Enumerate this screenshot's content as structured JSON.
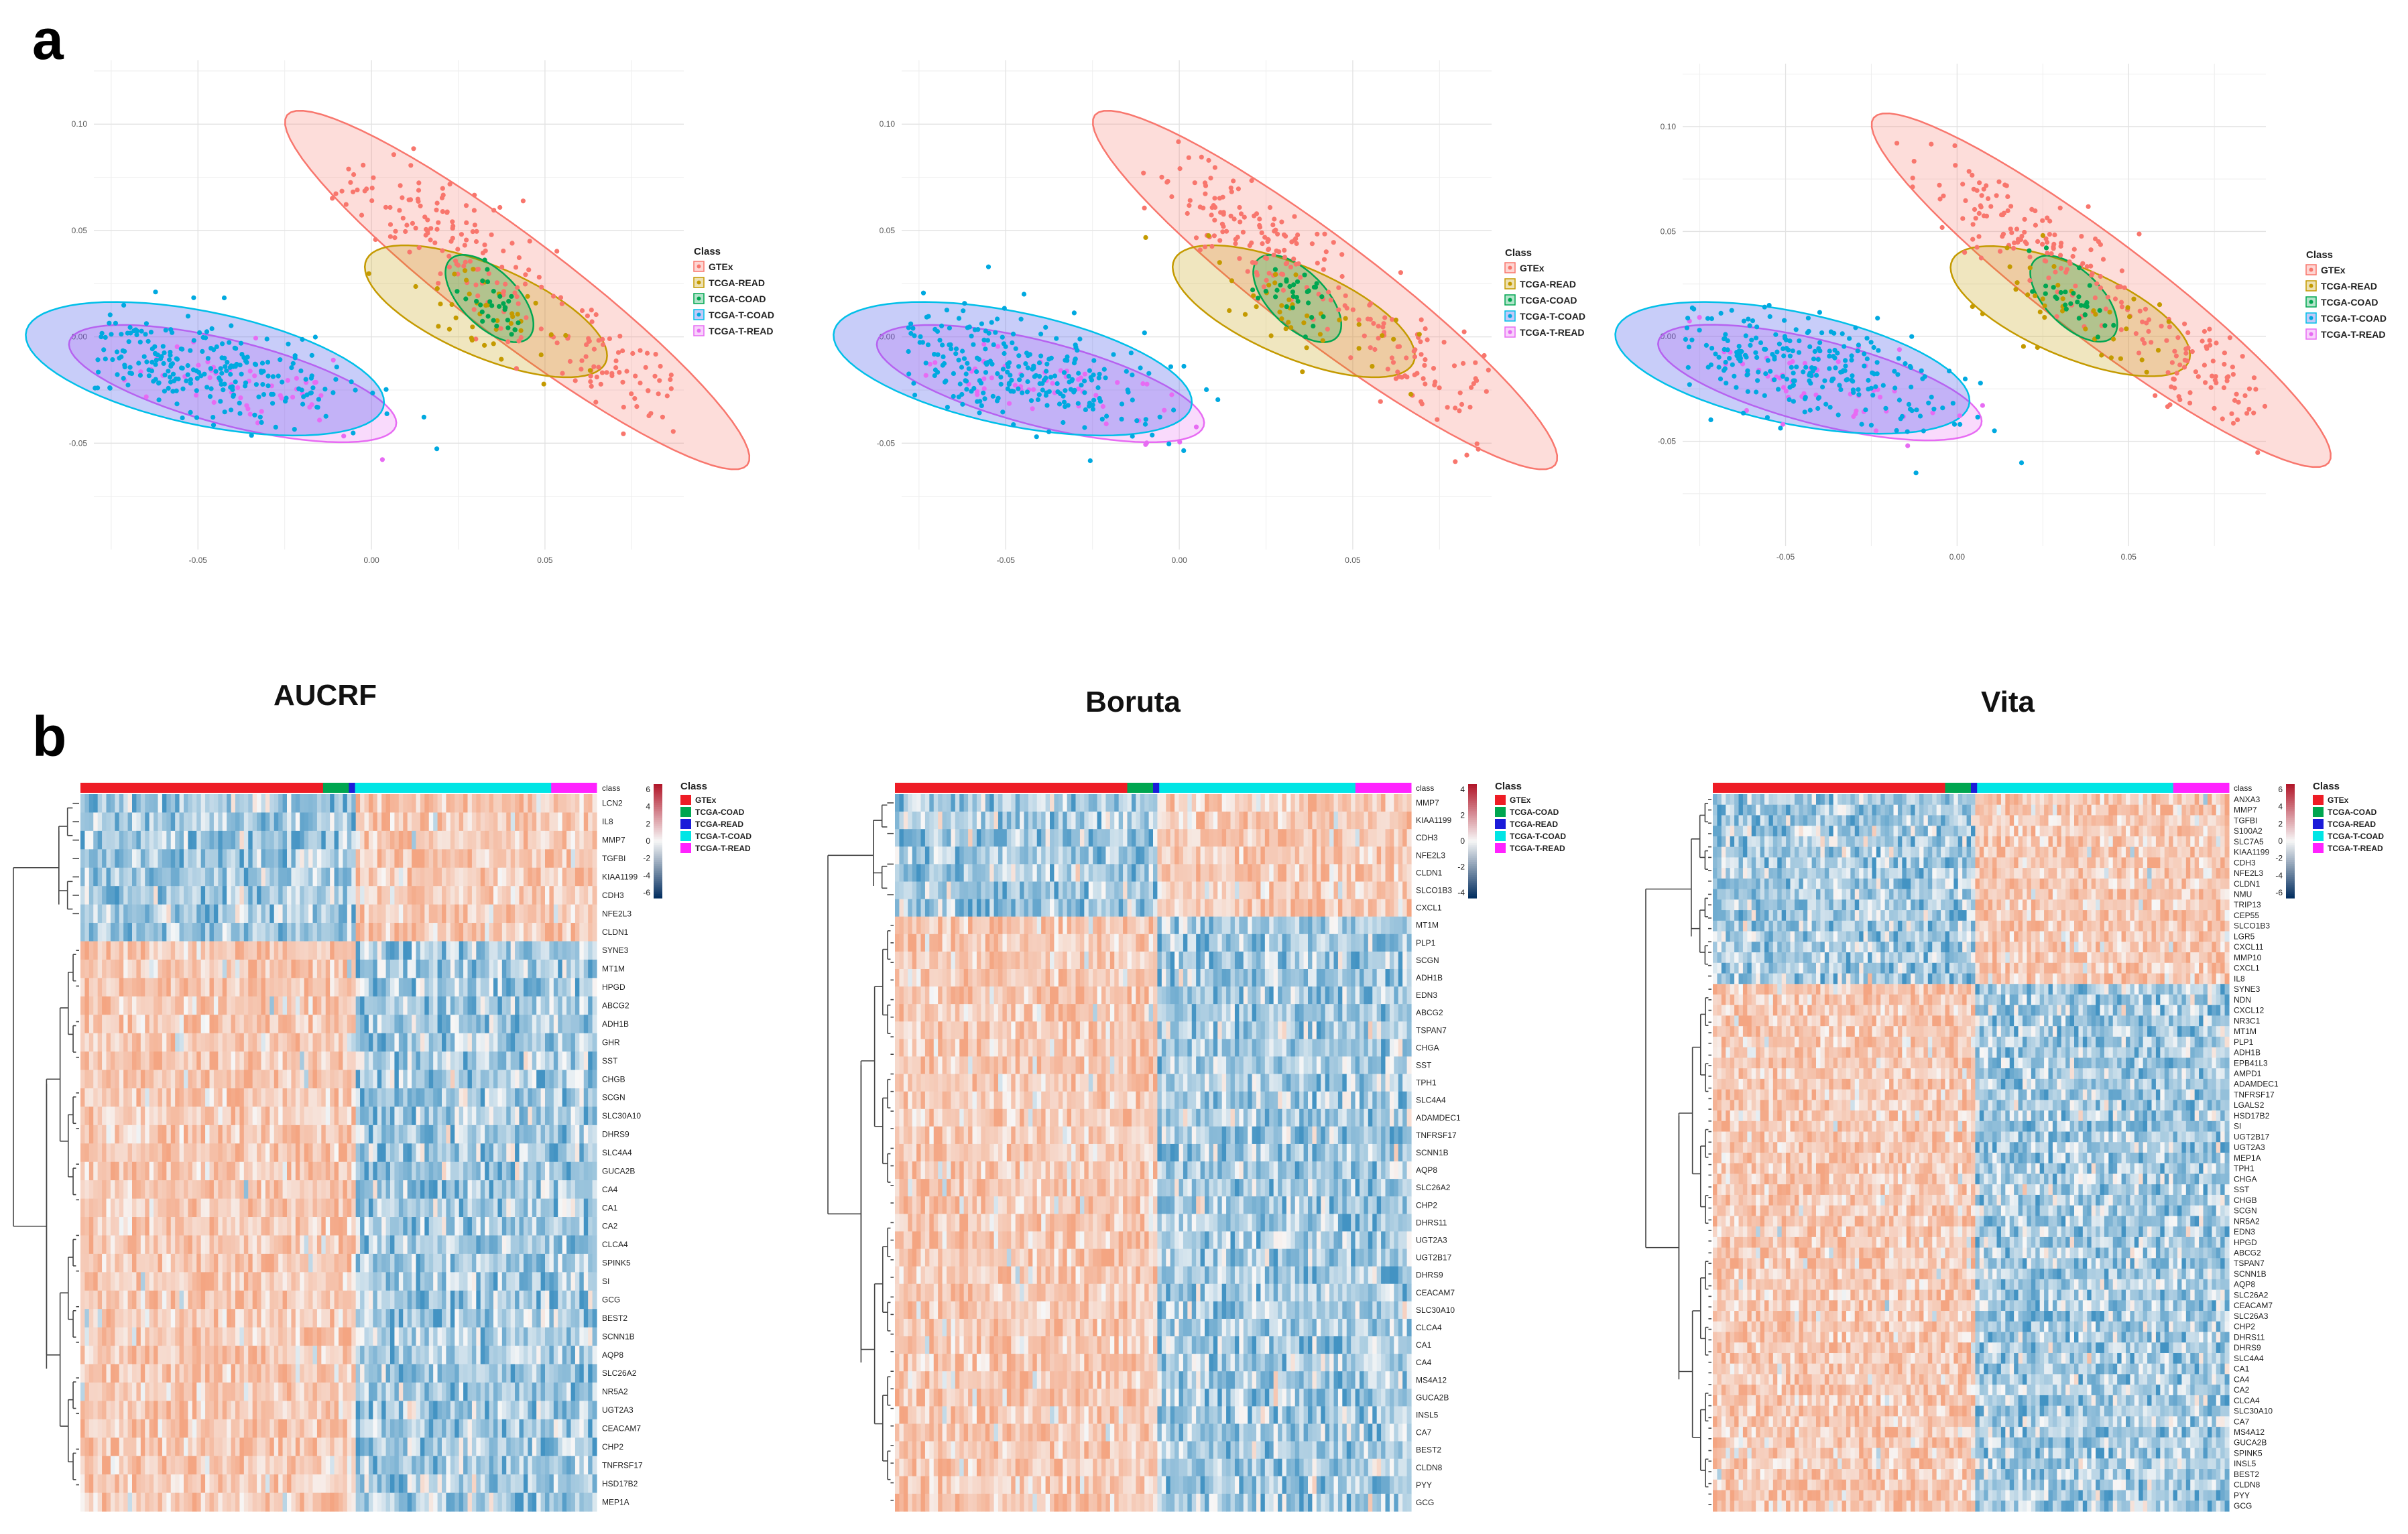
{
  "figure": {
    "panel_a_label": "a",
    "panel_b_label": "b",
    "methods": [
      "AUCRF",
      "Boruta",
      "Vita"
    ]
  },
  "colors": {
    "GTEx": "#F8766D",
    "TCGA-READ": "#C49A00",
    "TCGA-COAD": "#00A650",
    "TCGA-T-COAD": "#00A9E0",
    "TCGA-T-READ": "#E76BF3",
    "bar_GTEx": "#EE1C25",
    "bar_TCGA-COAD": "#00A650",
    "bar_TCGA-READ": "#1B1BD9",
    "bar_TCGA-T-COAD": "#00E5E5",
    "bar_TCGA-T-READ": "#FF22FF",
    "heat_high": "#F4A582",
    "heat_low": "#6BAED6",
    "heat_mid": "#F7F7F7"
  },
  "chart_data": [
    {
      "type": "scatter",
      "method": "AUCRF",
      "xlabel": "",
      "ylabel": "",
      "x_ticks": [
        "-0.05",
        "0.00",
        "0.05"
      ],
      "y_ticks": [
        "0.10",
        "0.05",
        "0.00",
        "-0.05"
      ],
      "xlim": [
        -0.08,
        0.09
      ],
      "ylim": [
        -0.1,
        0.13
      ],
      "legend_title": "Class",
      "legend": [
        "GTEx",
        "TCGA-READ",
        "TCGA-COAD",
        "TCGA-T-COAD",
        "TCGA-T-READ"
      ],
      "series": [
        {
          "name": "GTEx",
          "center": [
            0.042,
            0.022
          ],
          "spread_major": 0.062,
          "spread_minor": 0.011,
          "angle_deg": -52,
          "n": 230
        },
        {
          "name": "TCGA-READ",
          "center": [
            0.033,
            0.012
          ],
          "spread_major": 0.025,
          "spread_minor": 0.011,
          "angle_deg": -40,
          "n": 40
        },
        {
          "name": "TCGA-COAD",
          "center": [
            0.034,
            0.018
          ],
          "spread_major": 0.013,
          "spread_minor": 0.0055,
          "angle_deg": -65,
          "n": 30
        },
        {
          "name": "TCGA-T-COAD",
          "center": [
            -0.048,
            -0.015
          ],
          "spread_major": 0.032,
          "spread_minor": 0.015,
          "angle_deg": -22,
          "n": 270
        },
        {
          "name": "TCGA-T-READ",
          "center": [
            -0.04,
            -0.022
          ],
          "spread_major": 0.03,
          "spread_minor": 0.011,
          "angle_deg": -25,
          "n": 55
        }
      ]
    },
    {
      "type": "scatter",
      "method": "Boruta",
      "xlabel": "",
      "ylabel": "",
      "x_ticks": [
        "-0.05",
        "0.00",
        "0.05"
      ],
      "y_ticks": [
        "0.10",
        "0.05",
        "0.00",
        "-0.05"
      ],
      "xlim": [
        -0.08,
        0.09
      ],
      "ylim": [
        -0.1,
        0.13
      ],
      "legend_title": "Class",
      "legend": [
        "GTEx",
        "TCGA-READ",
        "TCGA-COAD",
        "TCGA-T-COAD",
        "TCGA-T-READ"
      ],
      "series": [
        {
          "name": "GTEx",
          "center": [
            0.042,
            0.022
          ],
          "spread_major": 0.062,
          "spread_minor": 0.011,
          "angle_deg": -52,
          "n": 230
        },
        {
          "name": "TCGA-READ",
          "center": [
            0.033,
            0.012
          ],
          "spread_major": 0.025,
          "spread_minor": 0.011,
          "angle_deg": -40,
          "n": 40
        },
        {
          "name": "TCGA-COAD",
          "center": [
            0.034,
            0.018
          ],
          "spread_major": 0.013,
          "spread_minor": 0.0055,
          "angle_deg": -65,
          "n": 30
        },
        {
          "name": "TCGA-T-COAD",
          "center": [
            -0.048,
            -0.015
          ],
          "spread_major": 0.032,
          "spread_minor": 0.015,
          "angle_deg": -22,
          "n": 270
        },
        {
          "name": "TCGA-T-READ",
          "center": [
            -0.04,
            -0.022
          ],
          "spread_major": 0.03,
          "spread_minor": 0.011,
          "angle_deg": -25,
          "n": 55
        }
      ]
    },
    {
      "type": "scatter",
      "method": "Vita",
      "xlabel": "",
      "ylabel": "",
      "x_ticks": [
        "-0.05",
        "0.00",
        "0.05"
      ],
      "y_ticks": [
        "0.10",
        "0.05",
        "0.00",
        "-0.05"
      ],
      "xlim": [
        -0.08,
        0.09
      ],
      "ylim": [
        -0.1,
        0.13
      ],
      "legend_title": "Class",
      "legend": [
        "GTEx",
        "TCGA-READ",
        "TCGA-COAD",
        "TCGA-T-COAD",
        "TCGA-T-READ"
      ],
      "series": [
        {
          "name": "GTEx",
          "center": [
            0.042,
            0.022
          ],
          "spread_major": 0.062,
          "spread_minor": 0.011,
          "angle_deg": -52,
          "n": 230
        },
        {
          "name": "TCGA-READ",
          "center": [
            0.033,
            0.012
          ],
          "spread_major": 0.025,
          "spread_minor": 0.011,
          "angle_deg": -40,
          "n": 40
        },
        {
          "name": "TCGA-COAD",
          "center": [
            0.034,
            0.018
          ],
          "spread_major": 0.013,
          "spread_minor": 0.0055,
          "angle_deg": -65,
          "n": 30
        },
        {
          "name": "TCGA-T-COAD",
          "center": [
            -0.048,
            -0.015
          ],
          "spread_major": 0.032,
          "spread_minor": 0.015,
          "angle_deg": -22,
          "n": 270
        },
        {
          "name": "TCGA-T-READ",
          "center": [
            -0.04,
            -0.022
          ],
          "spread_major": 0.03,
          "spread_minor": 0.011,
          "angle_deg": -25,
          "n": 55
        }
      ]
    },
    {
      "type": "heatmap",
      "method": "AUCRF",
      "annotation_label": "class",
      "legend_title": "Class",
      "legend": [
        "GTEx",
        "TCGA-COAD",
        "TCGA-READ",
        "TCGA-T-COAD",
        "TCGA-T-READ"
      ],
      "scale_ticks": [
        "6",
        "4",
        "2",
        "0",
        "-2",
        "-4",
        "-6"
      ],
      "class_fractions": [
        0.47,
        0.05,
        0.012,
        0.38,
        0.088
      ],
      "up_count": 8,
      "genes": [
        "LCN2",
        "IL8",
        "MMP7",
        "TGFBI",
        "KIAA1199",
        "CDH3",
        "NFE2L3",
        "CLDN1",
        "SYNE3",
        "MT1M",
        "HPGD",
        "ABCG2",
        "ADH1B",
        "GHR",
        "SST",
        "CHGB",
        "SCGN",
        "SLC30A10",
        "DHRS9",
        "SLC4A4",
        "GUCA2B",
        "CA4",
        "CA1",
        "CA2",
        "CLCA4",
        "SPINK5",
        "SI",
        "GCG",
        "BEST2",
        "SCNN1B",
        "AQP8",
        "SLC26A2",
        "NR5A2",
        "UGT2A3",
        "CEACAM7",
        "CHP2",
        "TNFRSF17",
        "HSD17B2",
        "MEP1A"
      ]
    },
    {
      "type": "heatmap",
      "method": "Boruta",
      "annotation_label": "class",
      "legend_title": "Class",
      "legend": [
        "GTEx",
        "TCGA-COAD",
        "TCGA-READ",
        "TCGA-T-COAD",
        "TCGA-T-READ"
      ],
      "scale_ticks": [
        "4",
        "2",
        "0",
        "-2",
        "-4"
      ],
      "class_fractions": [
        0.45,
        0.05,
        0.012,
        0.38,
        0.108
      ],
      "up_count": 7,
      "genes": [
        "MMP7",
        "KIAA1199",
        "CDH3",
        "NFE2L3",
        "CLDN1",
        "SLCO1B3",
        "CXCL1",
        "MT1M",
        "PLP1",
        "SCGN",
        "ADH1B",
        "EDN3",
        "ABCG2",
        "TSPAN7",
        "CHGA",
        "SST",
        "TPH1",
        "SLC4A4",
        "ADAMDEC1",
        "TNFRSF17",
        "SCNN1B",
        "AQP8",
        "SLC26A2",
        "CHP2",
        "DHRS11",
        "UGT2A3",
        "UGT2B17",
        "DHRS9",
        "CEACAM7",
        "SLC30A10",
        "CLCA4",
        "CA1",
        "CA4",
        "MS4A12",
        "GUCA2B",
        "INSL5",
        "CA7",
        "BEST2",
        "CLDN8",
        "PYY",
        "GCG"
      ]
    },
    {
      "type": "heatmap",
      "method": "Vita",
      "annotation_label": "class",
      "legend_title": "Class",
      "legend": [
        "GTEx",
        "TCGA-COAD",
        "TCGA-READ",
        "TCGA-T-COAD",
        "TCGA-T-READ"
      ],
      "scale_ticks": [
        "6",
        "4",
        "2",
        "0",
        "-2",
        "-4",
        "-6"
      ],
      "class_fractions": [
        0.45,
        0.05,
        0.012,
        0.38,
        0.108
      ],
      "up_count": 18,
      "genes": [
        "ANXA3",
        "MMP7",
        "TGFBI",
        "S100A2",
        "SLC7A5",
        "KIAA1199",
        "CDH3",
        "NFE2L3",
        "CLDN1",
        "NMU",
        "TRIP13",
        "CEP55",
        "SLCO1B3",
        "LGR5",
        "CXCL11",
        "MMP10",
        "CXCL1",
        "IL8",
        "SYNE3",
        "NDN",
        "CXCL12",
        "NR3C1",
        "MT1M",
        "PLP1",
        "ADH1B",
        "EPB41L3",
        "AMPD1",
        "ADAMDEC1",
        "TNFRSF17",
        "LGALS2",
        "HSD17B2",
        "SI",
        "UGT2B17",
        "UGT2A3",
        "MEP1A",
        "TPH1",
        "CHGA",
        "SST",
        "CHGB",
        "SCGN",
        "NR5A2",
        "EDN3",
        "HPGD",
        "ABCG2",
        "TSPAN7",
        "SCNN1B",
        "AQP8",
        "SLC26A2",
        "CEACAM7",
        "SLC26A3",
        "CHP2",
        "DHRS11",
        "DHRS9",
        "SLC4A4",
        "CA1",
        "CA4",
        "CA2",
        "CLCA4",
        "SLC30A10",
        "CA7",
        "MS4A12",
        "GUCA2B",
        "SPINK5",
        "INSL5",
        "BEST2",
        "CLDN8",
        "PYY",
        "GCG"
      ]
    }
  ]
}
